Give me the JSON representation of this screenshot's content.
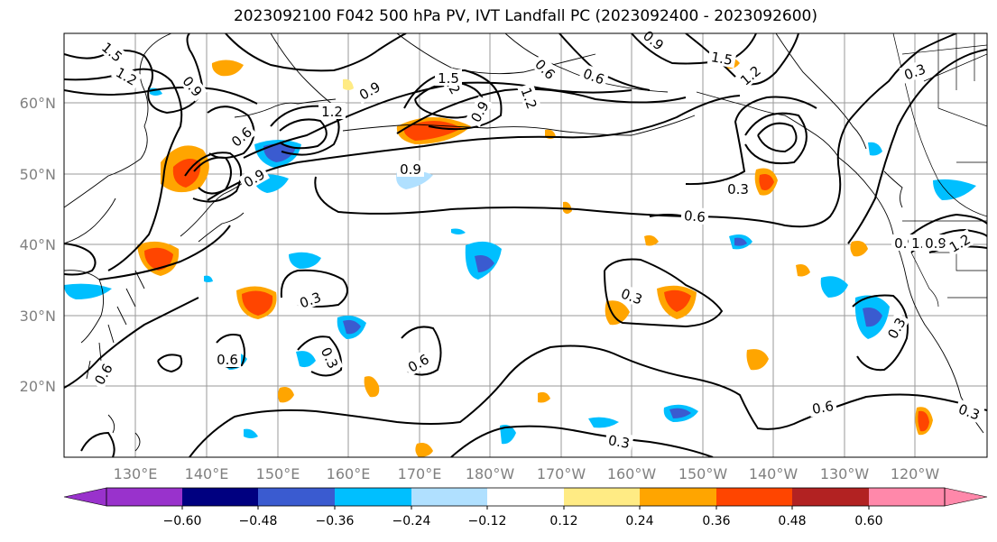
{
  "title": "2023092100 F042 500 hPa PV, IVT Landfall PC (2023092400 - 2023092600)",
  "map": {
    "lon_labels": [
      "130°E",
      "140°E",
      "150°E",
      "160°E",
      "170°E",
      "180°W",
      "170°W",
      "160°W",
      "150°W",
      "140°W",
      "130°W",
      "120°W"
    ],
    "lat_labels": [
      "60°N",
      "50°N",
      "40°N",
      "30°N",
      "20°N"
    ],
    "contour_labels": [
      "1.5",
      "1.2",
      "0.9",
      "0.6",
      "0.9",
      "1.2",
      "0.9",
      "0.9",
      "1.2",
      "1.5",
      "0.6",
      "0.6",
      "0.9",
      "1.5",
      "1.2",
      "0.9",
      "1.2",
      "0.6",
      "0.3",
      "0.3",
      "0.3",
      "0.6",
      "0.3",
      "0.6",
      "0.6",
      "0.3",
      "0.6",
      "0.3",
      "0.3",
      "0.9",
      "1.2",
      "0.9",
      "1.2",
      "0.3"
    ]
  },
  "colorbar": {
    "ticks": [
      "−0.60",
      "−0.48",
      "−0.36",
      "−0.24",
      "−0.12",
      "0.12",
      "0.24",
      "0.36",
      "0.48",
      "0.60"
    ],
    "colors": [
      "#9932cc",
      "#000080",
      "#3a5bd0",
      "#00bfff",
      "#b0e0ff",
      "#ffffff",
      "#ffeb84",
      "#ffa500",
      "#ff4500",
      "#b22222",
      "#ff88aa"
    ]
  }
}
